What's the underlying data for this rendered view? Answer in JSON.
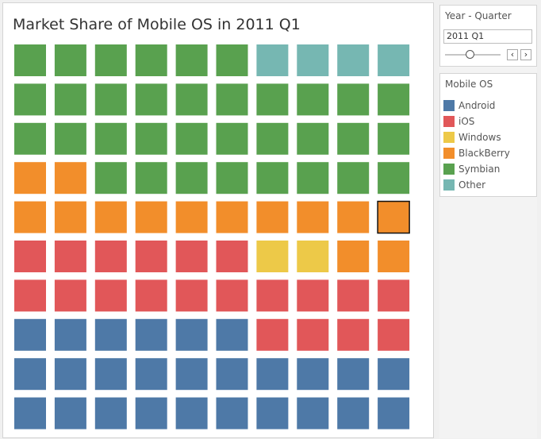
{
  "chart_data": {
    "type": "waffle",
    "title": "Market Share of Mobile OS in 2011 Q1",
    "grid": {
      "rows": 10,
      "cols": 10
    },
    "values": [
      {
        "name": "Android",
        "squares": 26
      },
      {
        "name": "iOS",
        "squares": 20
      },
      {
        "name": "Windows",
        "squares": 2
      },
      {
        "name": "BlackBerry",
        "squares": 14
      },
      {
        "name": "Symbian",
        "squares": 34
      },
      {
        "name": "Other",
        "squares": 4
      }
    ],
    "highlighted_square": {
      "row": 5,
      "col": 10,
      "category": "BlackBerry"
    }
  },
  "colors": {
    "Android": "#4e79a7",
    "iOS": "#e15759",
    "Windows": "#edc948",
    "BlackBerry": "#f28e2b",
    "Symbian": "#59a14f",
    "Other": "#76b7b2"
  },
  "filter": {
    "title": "Year - Quarter",
    "value": "2011 Q1",
    "prev_icon": "‹",
    "next_icon": "›"
  },
  "legend": {
    "title": "Mobile OS",
    "items": [
      "Android",
      "iOS",
      "Windows",
      "BlackBerry",
      "Symbian",
      "Other"
    ]
  }
}
